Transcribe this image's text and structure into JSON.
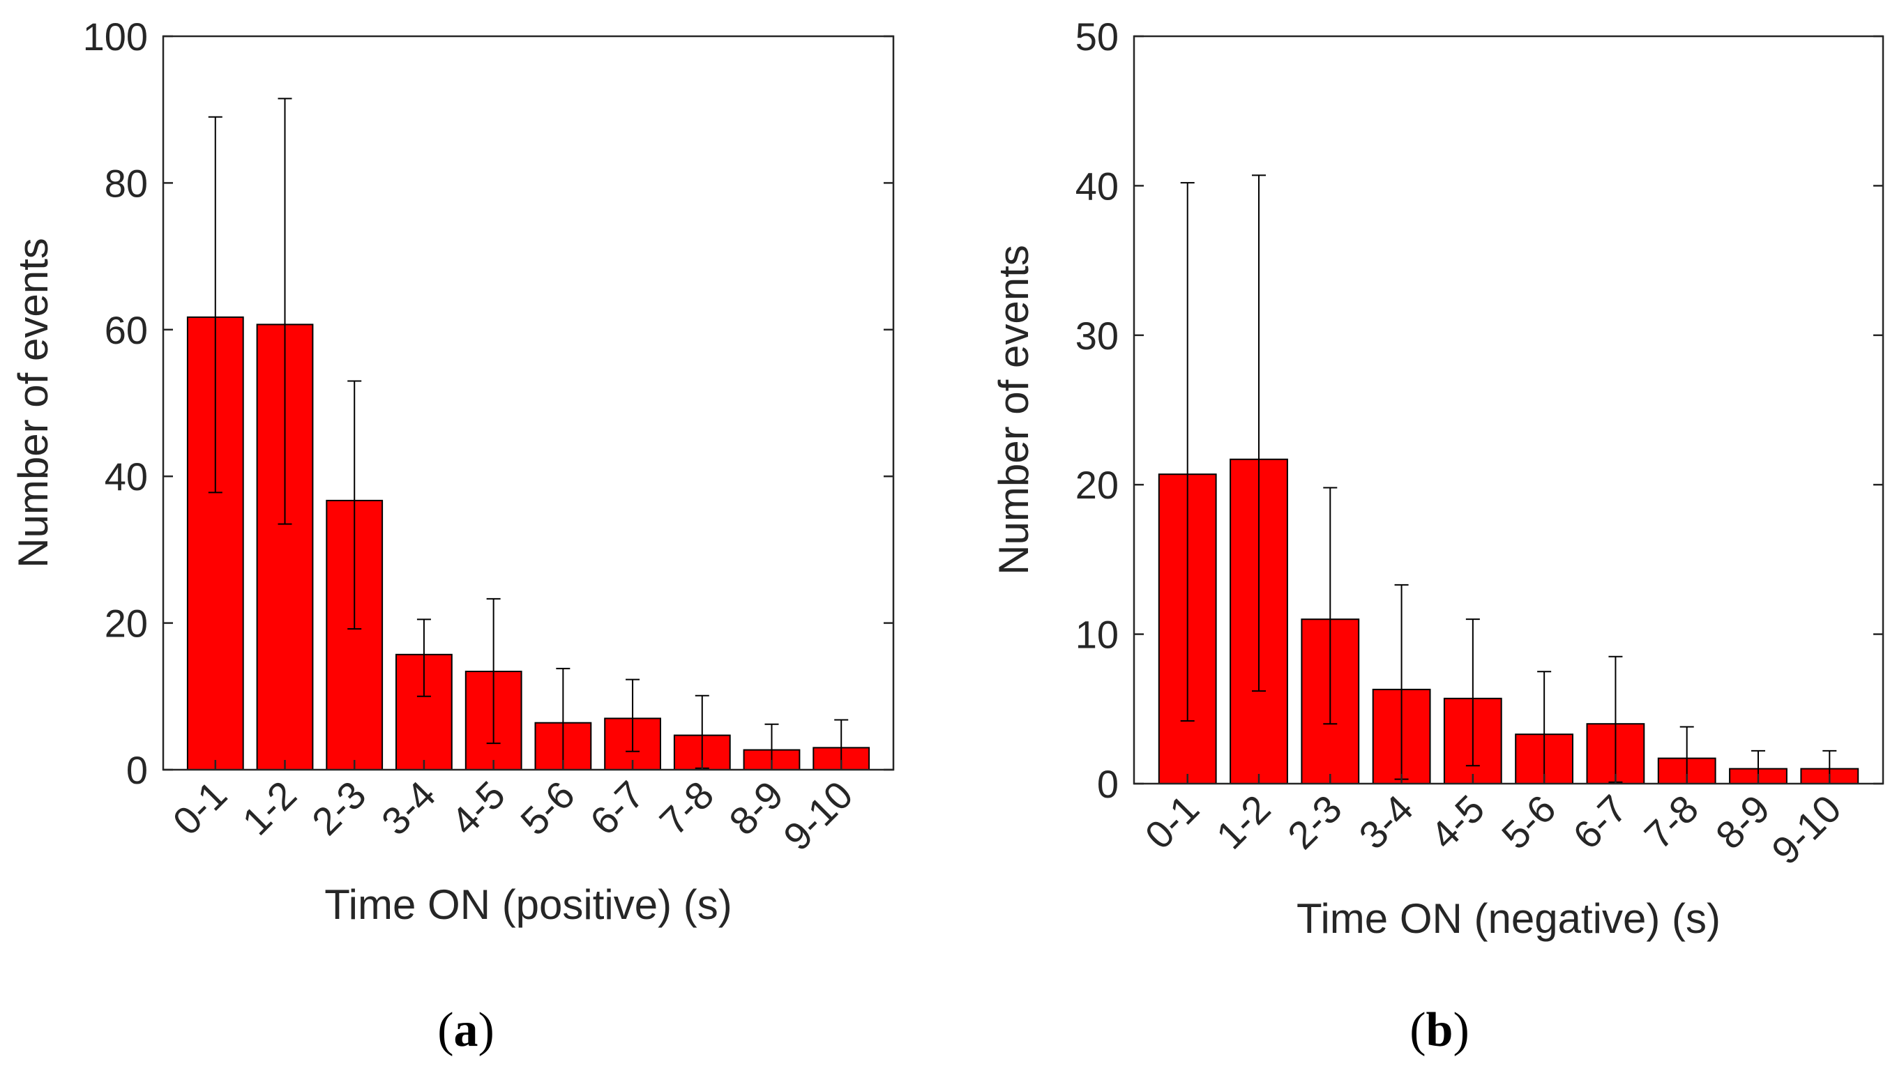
{
  "chart_data": [
    {
      "type": "bar",
      "panel": "a",
      "panel_label": {
        "open": "(",
        "letter": "a",
        "close": ")"
      },
      "categories": [
        "0-1",
        "1-2",
        "2-3",
        "3-4",
        "4-5",
        "5-6",
        "6-7",
        "7-8",
        "8-9",
        "9-10"
      ],
      "values": [
        61.7,
        60.7,
        36.7,
        15.7,
        13.4,
        6.4,
        7.0,
        4.7,
        2.7,
        3.0
      ],
      "error_low": [
        37.8,
        33.5,
        19.2,
        10.0,
        3.6,
        0.0,
        2.5,
        0.2,
        0.0,
        0.0
      ],
      "error_high": [
        89.0,
        91.5,
        53.0,
        20.5,
        23.3,
        13.8,
        12.3,
        10.1,
        6.2,
        6.8
      ],
      "xlabel": "Time ON (positive) (s)",
      "ylabel": "Number of events",
      "ylim": [
        0,
        100
      ],
      "yticks": [
        0,
        20,
        40,
        60,
        80,
        100
      ],
      "bar_color": "#ff0000",
      "grid": false
    },
    {
      "type": "bar",
      "panel": "b",
      "panel_label": {
        "open": "(",
        "letter": "b",
        "close": ")"
      },
      "categories": [
        "0-1",
        "1-2",
        "2-3",
        "3-4",
        "4-5",
        "5-6",
        "6-7",
        "7-8",
        "8-9",
        "9-10"
      ],
      "values": [
        20.7,
        21.7,
        11.0,
        6.3,
        5.7,
        3.3,
        4.0,
        1.7,
        1.0,
        1.0
      ],
      "error_low": [
        4.2,
        6.2,
        4.0,
        0.3,
        1.2,
        0.0,
        0.1,
        0.0,
        0.0,
        0.0
      ],
      "error_high": [
        40.2,
        40.7,
        19.8,
        13.3,
        11.0,
        7.5,
        8.5,
        3.8,
        2.2,
        2.2
      ],
      "xlabel": "Time ON (negative) (s)",
      "ylabel": "Number of events",
      "ylim": [
        0,
        50
      ],
      "yticks": [
        0,
        10,
        20,
        30,
        40,
        50
      ],
      "bar_color": "#ff0000",
      "grid": false
    }
  ]
}
